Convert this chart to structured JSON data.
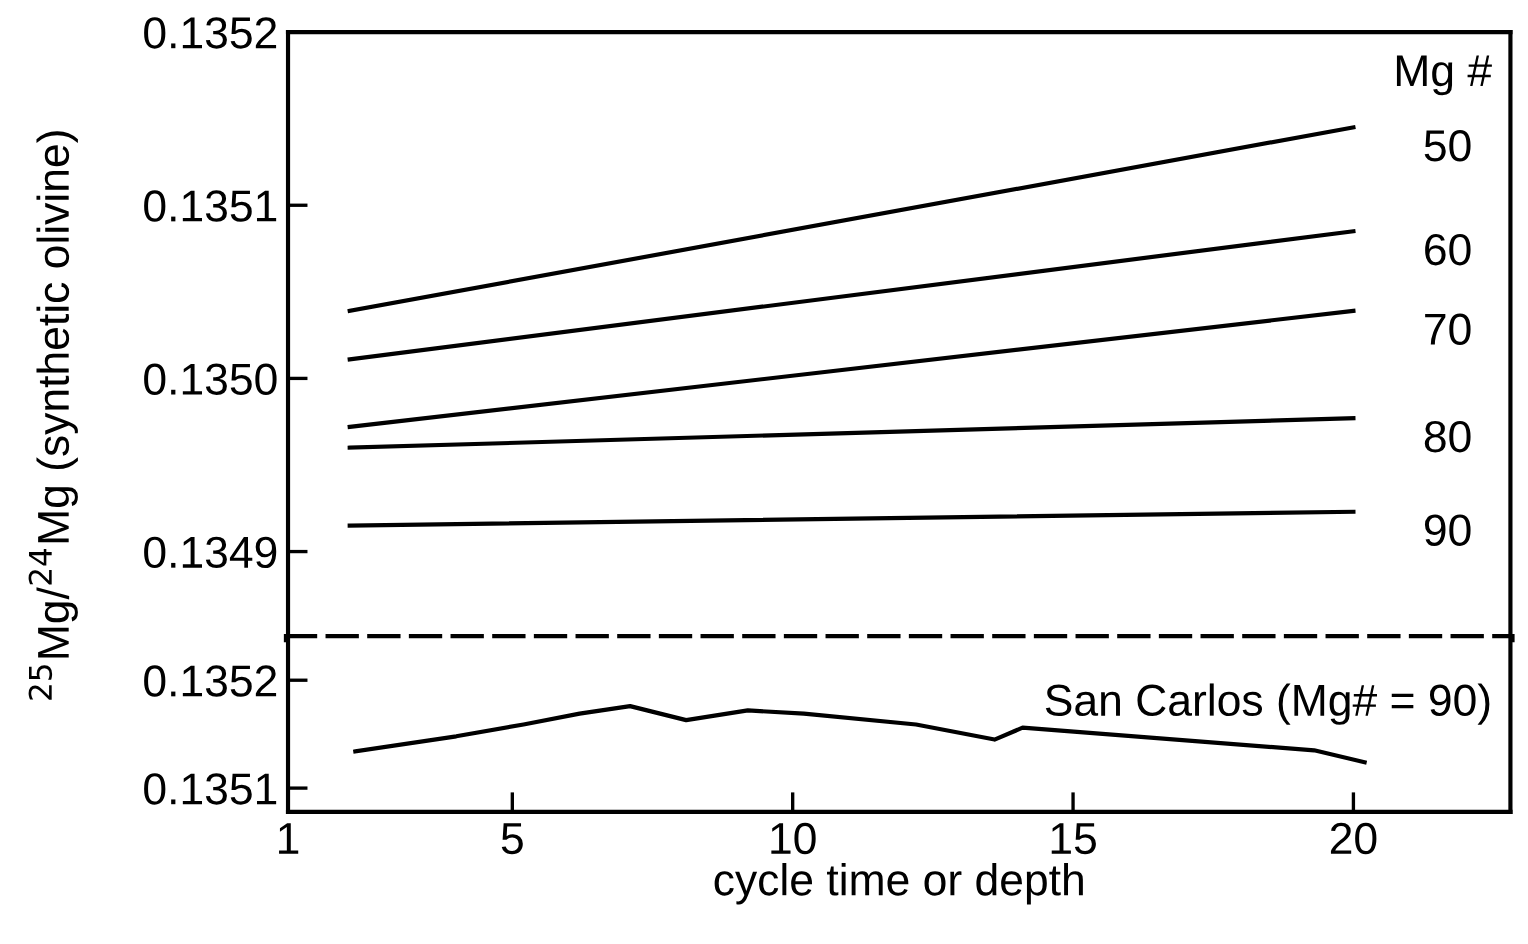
{
  "chart_data": [
    {
      "type": "line",
      "ylabel": "$^{25}$Mg/$^{24}$Mg (synthetic olivine)",
      "legend_title": "Mg #",
      "xlim": [
        1,
        22.8
      ],
      "ylim": [
        0.13485,
        0.1352
      ],
      "yticks": [
        0.1349,
        {
          "value": 0.135,
          "label": "0.1350"
        },
        0.1351,
        0.1352
      ],
      "tick_labels": "y",
      "legend": "right",
      "grid": false,
      "marker": "none",
      "line_style": "solid",
      "series": [
        {
          "name": "50",
          "color": "#000000",
          "x": [
            2.1,
            20
          ],
          "values": [
            0.135039,
            0.135145
          ]
        },
        {
          "name": "60",
          "color": "#000000",
          "x": [
            2.1,
            20
          ],
          "values": [
            0.135011,
            0.135085
          ]
        },
        {
          "name": "70",
          "color": "#000000",
          "x": [
            2.1,
            20
          ],
          "values": [
            0.134972,
            0.135039
          ]
        },
        {
          "name": "80",
          "color": "#000000",
          "x": [
            2.1,
            20
          ],
          "values": [
            0.13496,
            0.134977
          ]
        },
        {
          "name": "90",
          "color": "#000000",
          "x": [
            2.1,
            20
          ],
          "values": [
            0.134915,
            0.134923
          ]
        }
      ]
    },
    {
      "type": "line",
      "xlabel": "cycle time or depth",
      "xlim": [
        1,
        22.8
      ],
      "xticks": [
        1,
        5,
        10,
        15,
        20
      ],
      "ylim": [
        0.135078,
        0.135239
      ],
      "yticks": [
        0.1351,
        0.1352
      ],
      "grid": false,
      "marker": "none",
      "line_style": "solid",
      "series": [
        {
          "name": "San Carlos (Mg# = 90)",
          "color": "#000000",
          "x": [
            2.2,
            4.0,
            5.2,
            6.2,
            7.1,
            8.1,
            9.2,
            10.2,
            12.2,
            13.6,
            14.1,
            19.3,
            20.2
          ],
          "values": [
            0.135134,
            0.135148,
            0.135159,
            0.135169,
            0.135176,
            0.135163,
            0.135172,
            0.135169,
            0.135159,
            0.135145,
            0.135156,
            0.135135,
            0.135124
          ]
        }
      ]
    }
  ]
}
